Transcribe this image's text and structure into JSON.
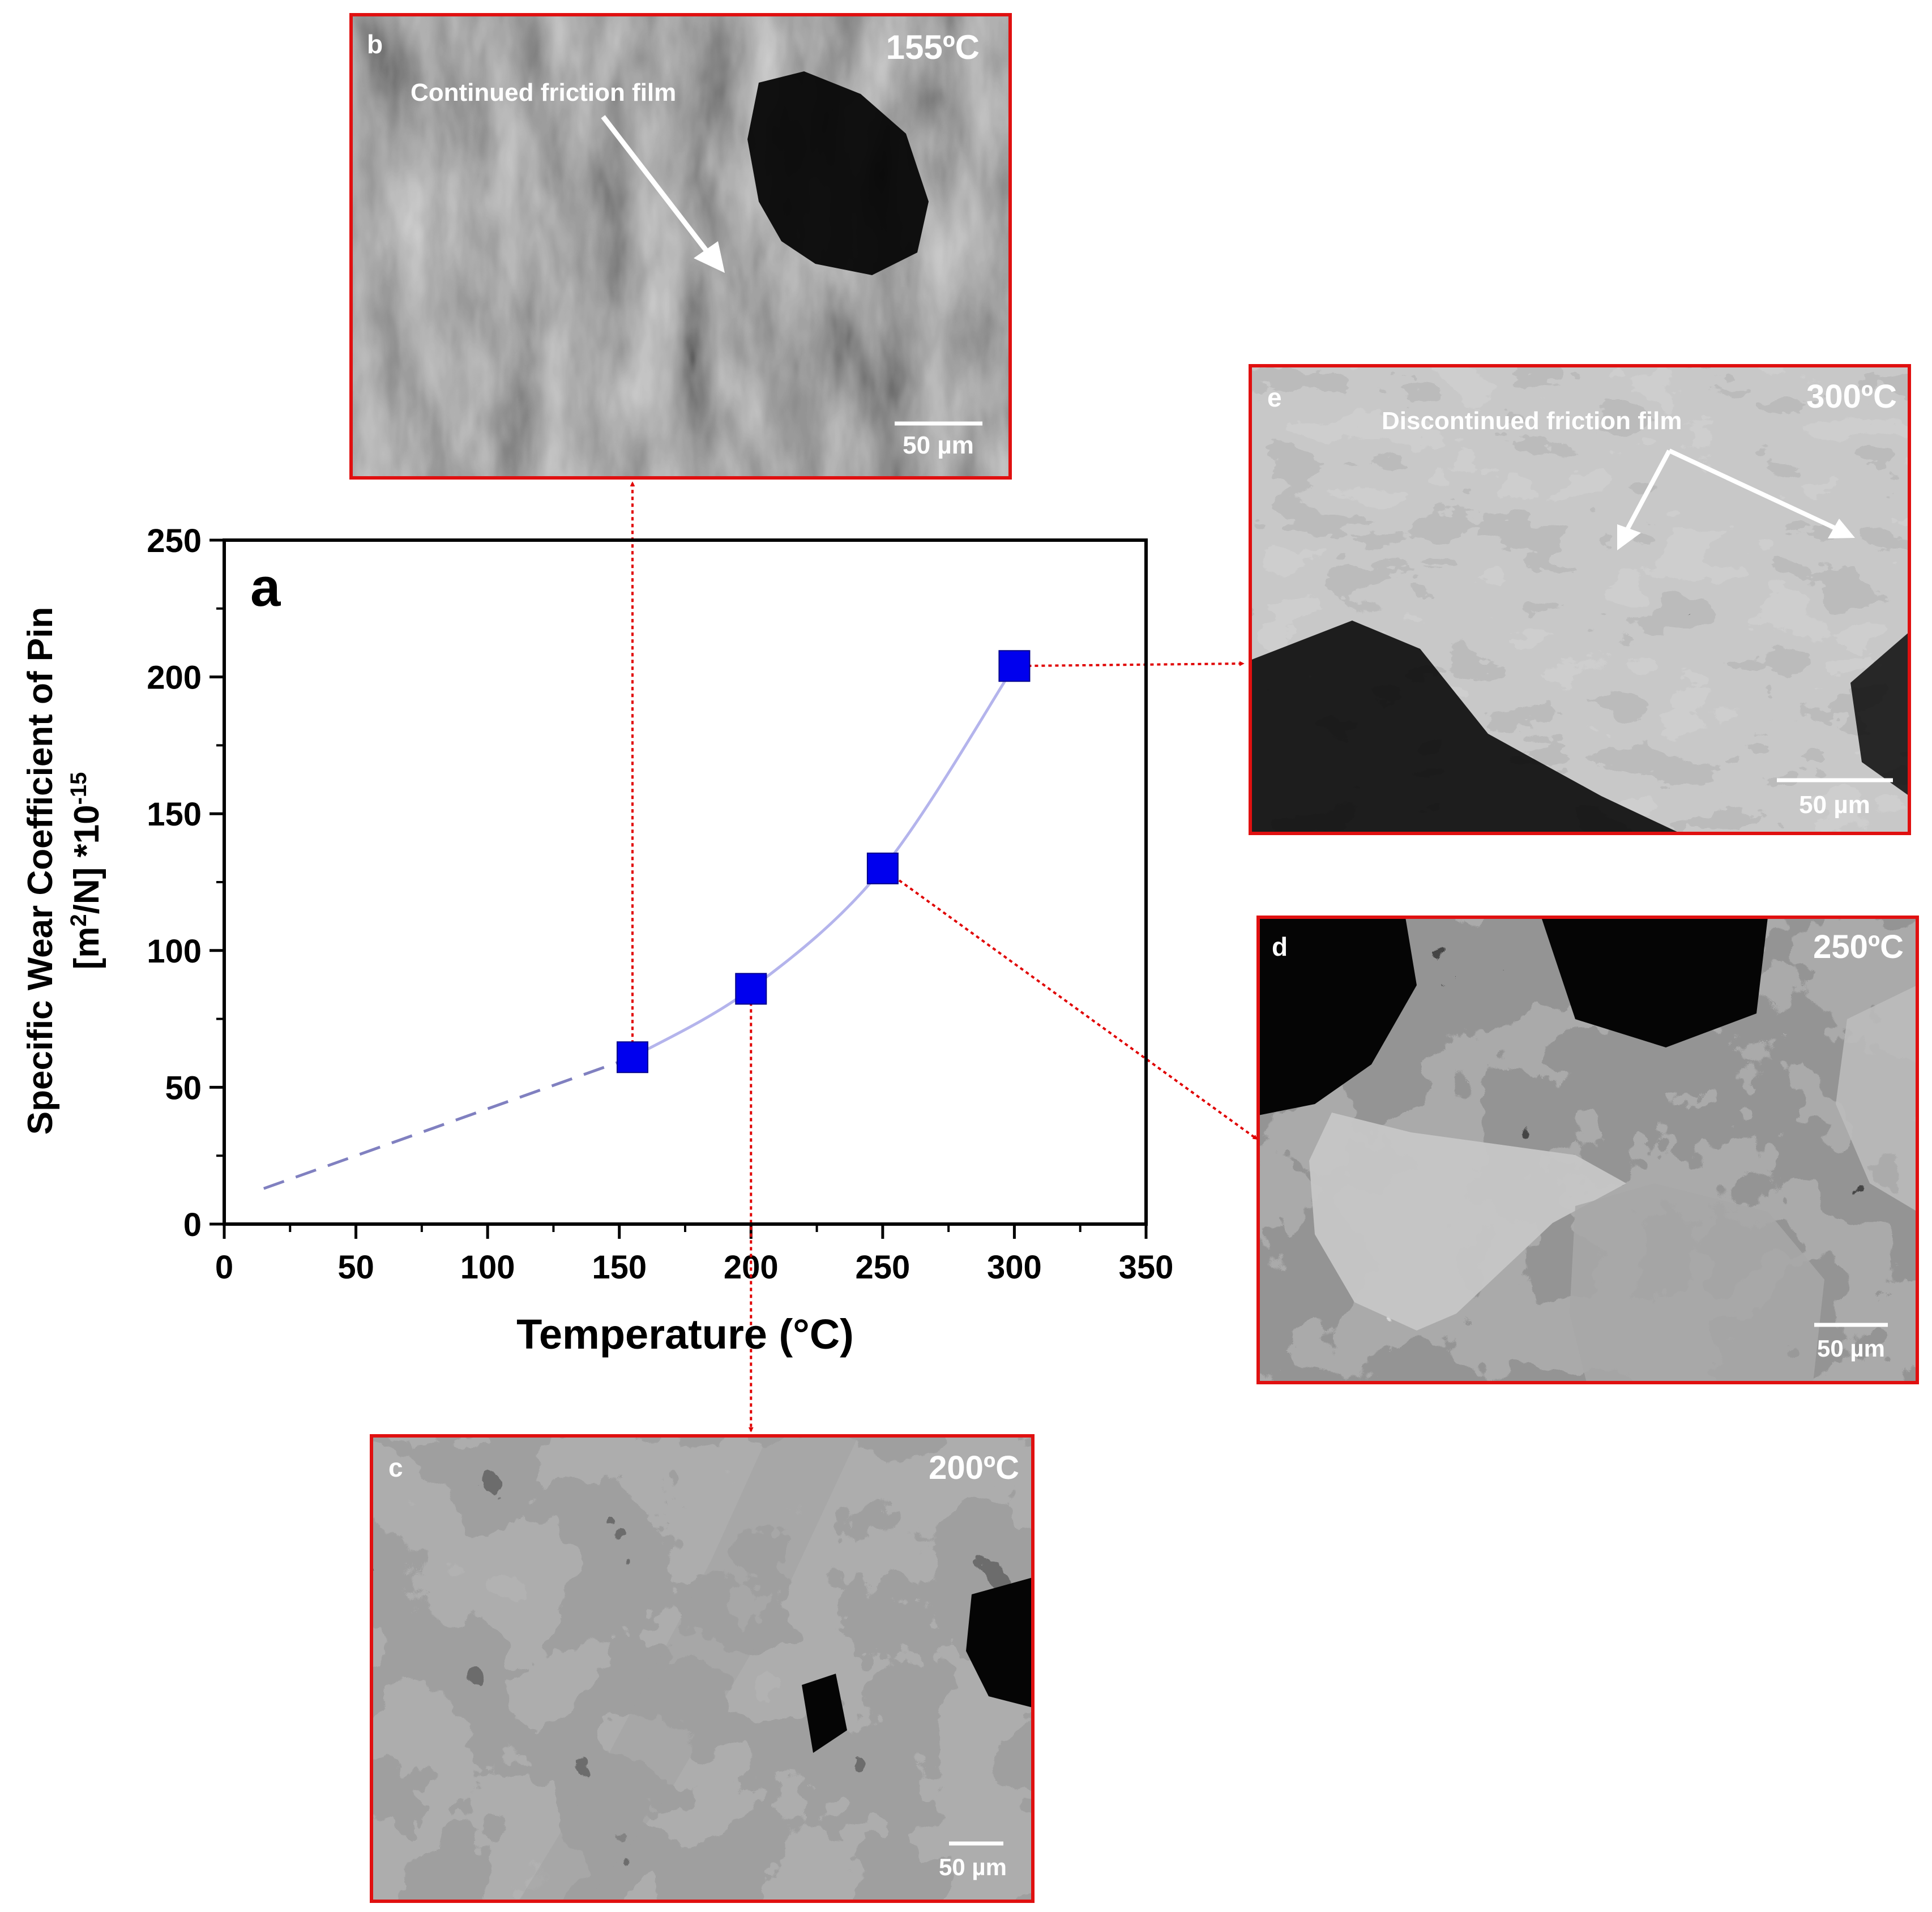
{
  "chart_data": {
    "type": "scatter",
    "panel_label": "a",
    "xlabel": "Temperature (°C)",
    "ylabel_line1": "Specific Wear Coefficient of Pin",
    "ylabel_line2_parts": [
      "[m",
      "2",
      "/N] *10",
      "-15"
    ],
    "xlim": [
      0,
      350
    ],
    "ylim": [
      0,
      250
    ],
    "xticks": [
      "0",
      "50",
      "100",
      "150",
      "200",
      "250",
      "300",
      "350"
    ],
    "yticks": [
      "0",
      "50",
      "100",
      "150",
      "200",
      "250"
    ],
    "x": [
      155,
      200,
      250,
      300
    ],
    "y": [
      61,
      86,
      130,
      204
    ],
    "extrapolation": {
      "x": [
        15,
        155
      ],
      "y": [
        13,
        61
      ]
    },
    "colors": {
      "marker": "#0000ee",
      "fit_line": "#b4b4ec",
      "dashed_line": "#8080c0",
      "callout": "#e00000"
    }
  },
  "micrographs": [
    {
      "id": "b",
      "temperature": "155ºC",
      "annotation": "Continued friction film",
      "scale_bar": "50 µm",
      "at_x": 155
    },
    {
      "id": "c",
      "temperature": "200ºC",
      "annotation": "",
      "scale_bar": "50 µm",
      "at_x": 200
    },
    {
      "id": "d",
      "temperature": "250ºC",
      "annotation": "",
      "scale_bar": "50 µm",
      "at_x": 250
    },
    {
      "id": "e",
      "temperature": "300ºC",
      "annotation": "Discontinued friction film",
      "scale_bar": "50 µm",
      "at_x": 300
    }
  ]
}
